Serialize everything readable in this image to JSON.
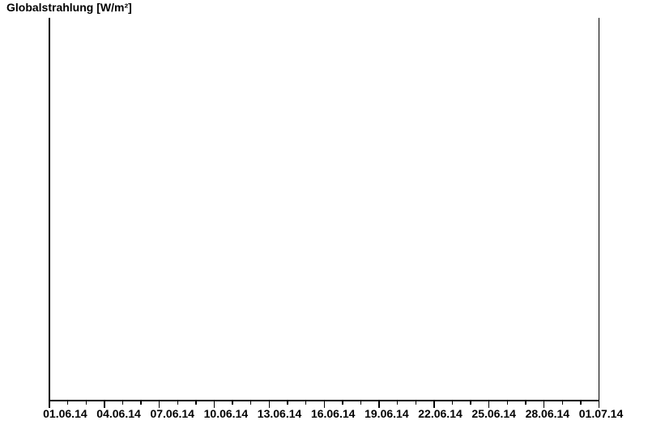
{
  "chart": {
    "title": "Globalstrahlung [W/m²]",
    "x_axis": {
      "tick_labels": [
        "01.06.14",
        "04.06.14",
        "07.06.14",
        "10.06.14",
        "13.06.14",
        "16.06.14",
        "19.06.14",
        "22.06.14",
        "25.06.14",
        "28.06.14",
        "01.07.14"
      ],
      "minor_ticks_per_label_interval": 2,
      "days_per_label_interval": 3
    },
    "y_axis": {
      "tick_labels": []
    }
  },
  "chart_data": {
    "type": "line",
    "title": "Globalstrahlung [W/m²]",
    "xlabel": "",
    "ylabel": "Globalstrahlung [W/m²]",
    "x_tick_labels": [
      "01.06.14",
      "04.06.14",
      "07.06.14",
      "10.06.14",
      "13.06.14",
      "16.06.14",
      "19.06.14",
      "22.06.14",
      "25.06.14",
      "28.06.14",
      "01.07.14"
    ],
    "x_range": [
      "01.06.14",
      "01.07.14"
    ],
    "series": [],
    "grid": false,
    "legend": null,
    "plot_area_empty": true
  },
  "colors": {
    "background": "#ffffff",
    "axis": "#000000",
    "text": "#000000"
  }
}
